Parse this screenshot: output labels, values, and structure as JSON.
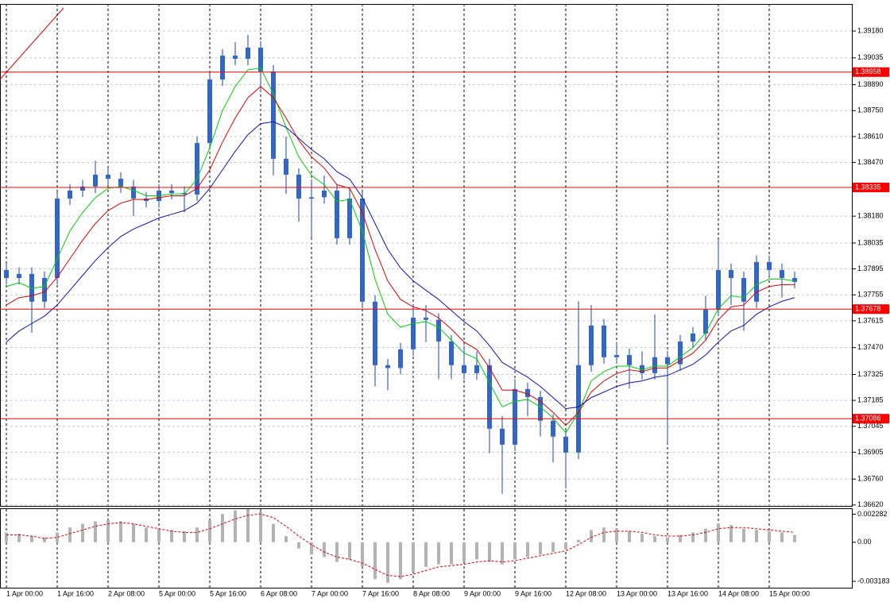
{
  "chart_data": [
    {
      "type": "candlestick",
      "categories": [
        "1 Apr 00:00",
        null,
        null,
        null,
        "1 Apr 16:00",
        null,
        null,
        null,
        "2 Apr 08:00",
        null,
        null,
        null,
        "5 Apr 00:00",
        null,
        null,
        null,
        "5 Apr 16:00",
        null,
        null,
        null,
        "6 Apr 08:00",
        null,
        null,
        null,
        "7 Apr 00:00",
        null,
        null,
        null,
        "7 Apr 16:00",
        null,
        null,
        null,
        "8 Apr 08:00",
        null,
        null,
        null,
        "9 Apr 00:00",
        null,
        null,
        null,
        "9 Apr 16:00",
        null,
        null,
        null,
        "12 Apr 08:00",
        null,
        null,
        null,
        "13 Apr 00:00",
        null,
        null,
        null,
        "13 Apr 16:00",
        null,
        null,
        null,
        "14 Apr 08:00",
        null,
        null,
        null,
        "15 Apr 00:00",
        null,
        null
      ],
      "open": [
        1.37889,
        1.37846,
        1.37868,
        1.37718,
        1.37846,
        1.38275,
        1.38318,
        1.3834,
        1.38404,
        1.38382,
        1.3834,
        1.38275,
        1.38262,
        1.38318,
        1.38305,
        1.38297,
        1.38575,
        1.38918,
        1.39047,
        1.3903,
        1.3909,
        1.38961,
        1.3849,
        1.38404,
        1.38275,
        1.38282,
        1.38318,
        1.38061,
        1.38275,
        1.37718,
        1.37375,
        1.3736,
        1.37461,
        1.37632,
        1.3762,
        1.37503,
        1.37375,
        1.37332,
        1.37375,
        1.37032,
        1.36946,
        1.37246,
        1.37203,
        1.37075,
        1.36989,
        1.36903,
        1.37375,
        1.37589,
        1.37418,
        1.3743,
        1.37375,
        1.37332,
        1.37418,
        1.3738,
        1.37503,
        1.37546,
        1.37675,
        1.37889,
        1.37846,
        1.37718,
        1.37932,
        1.37889,
        1.37846
      ],
      "high": [
        1.37924,
        1.37903,
        1.37903,
        1.37881,
        1.3831,
        1.38353,
        1.38375,
        1.3848,
        1.38439,
        1.38417,
        1.38375,
        1.3831,
        1.38353,
        1.38353,
        1.3834,
        1.3861,
        1.38953,
        1.39082,
        1.3912,
        1.3916,
        1.39125,
        1.38996,
        1.3861,
        1.38439,
        1.3838,
        1.384,
        1.38353,
        1.3833,
        1.3831,
        1.37753,
        1.3741,
        1.37496,
        1.377,
        1.377,
        1.37655,
        1.37538,
        1.3748,
        1.3745,
        1.3741,
        1.371,
        1.373,
        1.37281,
        1.37238,
        1.3711,
        1.37024,
        1.3772,
        1.377,
        1.37624,
        1.375,
        1.37465,
        1.3745,
        1.3765,
        1.37453,
        1.37538,
        1.37581,
        1.3775,
        1.3805,
        1.37924,
        1.37881,
        1.37967,
        1.37967,
        1.37924,
        1.37881
      ],
      "low": [
        1.37811,
        1.37811,
        1.3755,
        1.37683,
        1.37811,
        1.3824,
        1.38283,
        1.38305,
        1.38347,
        1.38305,
        1.3818,
        1.38227,
        1.38227,
        1.3827,
        1.382,
        1.38262,
        1.3854,
        1.38883,
        1.38995,
        1.38995,
        1.3885,
        1.384,
        1.383,
        1.3815,
        1.3806,
        1.38247,
        1.38026,
        1.38026,
        1.37683,
        1.3726,
        1.3724,
        1.37325,
        1.37426,
        1.375,
        1.373,
        1.373,
        1.37297,
        1.37297,
        1.369,
        1.3668,
        1.36911,
        1.371,
        1.3699,
        1.3685,
        1.3671,
        1.36868,
        1.3734,
        1.37383,
        1.37383,
        1.3725,
        1.37297,
        1.37297,
        1.3695,
        1.37345,
        1.37468,
        1.37511,
        1.3764,
        1.377,
        1.3756,
        1.37683,
        1.37854,
        1.3774,
        1.3779
      ],
      "close": [
        1.37846,
        1.37868,
        1.37718,
        1.37846,
        1.38275,
        1.38318,
        1.3834,
        1.38404,
        1.38382,
        1.3834,
        1.38275,
        1.38262,
        1.38318,
        1.38305,
        1.38297,
        1.38575,
        1.38918,
        1.39047,
        1.3903,
        1.3909,
        1.38961,
        1.3849,
        1.38404,
        1.38275,
        1.38282,
        1.38318,
        1.38061,
        1.38275,
        1.37718,
        1.37375,
        1.3736,
        1.37461,
        1.37632,
        1.3762,
        1.37503,
        1.37375,
        1.37332,
        1.37375,
        1.37032,
        1.36946,
        1.37246,
        1.37203,
        1.37075,
        1.36989,
        1.36903,
        1.37375,
        1.37589,
        1.37418,
        1.3743,
        1.37375,
        1.37332,
        1.37418,
        1.3738,
        1.37503,
        1.37546,
        1.37675,
        1.37889,
        1.37846,
        1.37718,
        1.37932,
        1.37889,
        1.37846,
        1.37825
      ],
      "candle_color": "#3465c8",
      "series": [
        {
          "color": "#00d000",
          "values": [
            1.378,
            1.3782,
            1.3779,
            1.378,
            1.3795,
            1.381,
            1.382,
            1.3828,
            1.3833,
            1.3834,
            1.3832,
            1.3829,
            1.3829,
            1.383,
            1.383,
            1.3838,
            1.3855,
            1.3875,
            1.3888,
            1.3897,
            1.3898,
            1.3884,
            1.3866,
            1.385,
            1.384,
            1.3835,
            1.3826,
            1.3827,
            1.381,
            1.3784,
            1.3765,
            1.3758,
            1.376,
            1.3761,
            1.3758,
            1.3751,
            1.3744,
            1.3741,
            1.3728,
            1.3715,
            1.3718,
            1.3719,
            1.3715,
            1.3709,
            1.3701,
            1.3712,
            1.3729,
            1.3734,
            1.3737,
            1.3737,
            1.3735,
            1.3737,
            1.3737,
            1.3742,
            1.3747,
            1.3755,
            1.3768,
            1.3775,
            1.3774,
            1.3781,
            1.3784,
            1.3784,
            1.3783
          ]
        },
        {
          "color": "#e00000",
          "values": [
            1.377,
            1.3774,
            1.3775,
            1.3777,
            1.3785,
            1.3795,
            1.3805,
            1.3814,
            1.3821,
            1.3825,
            1.3827,
            1.3827,
            1.3828,
            1.3829,
            1.3829,
            1.3833,
            1.3843,
            1.3858,
            1.3871,
            1.3882,
            1.3888,
            1.3882,
            1.3871,
            1.3859,
            1.385,
            1.3844,
            1.3835,
            1.3833,
            1.382,
            1.38,
            1.3783,
            1.3773,
            1.3769,
            1.3767,
            1.3763,
            1.3757,
            1.375,
            1.3746,
            1.3736,
            1.3724,
            1.3724,
            1.3722,
            1.3718,
            1.3712,
            1.3705,
            1.3712,
            1.3723,
            1.3729,
            1.3733,
            1.3735,
            1.3734,
            1.3736,
            1.3736,
            1.374,
            1.3744,
            1.3751,
            1.3762,
            1.3769,
            1.377,
            1.3777,
            1.378,
            1.3781,
            1.3781
          ]
        },
        {
          "color": "#1010c0",
          "values": [
            1.375,
            1.3756,
            1.376,
            1.3764,
            1.377,
            1.3778,
            1.3786,
            1.3794,
            1.3801,
            1.3807,
            1.3811,
            1.3814,
            1.3817,
            1.3819,
            1.3821,
            1.3825,
            1.3833,
            1.3843,
            1.3853,
            1.3862,
            1.3868,
            1.3869,
            1.3866,
            1.386,
            1.3854,
            1.3849,
            1.3842,
            1.3838,
            1.3828,
            1.3814,
            1.38,
            1.379,
            1.3783,
            1.3778,
            1.3773,
            1.3767,
            1.3761,
            1.3756,
            1.3748,
            1.3739,
            1.3735,
            1.3731,
            1.3726,
            1.372,
            1.3714,
            1.3715,
            1.372,
            1.3723,
            1.3726,
            1.3728,
            1.3729,
            1.3731,
            1.3732,
            1.3735,
            1.3738,
            1.3743,
            1.375,
            1.3756,
            1.3759,
            1.3765,
            1.3769,
            1.3772,
            1.3774
          ]
        }
      ],
      "levels": [
        1.38958,
        1.38335,
        1.37678,
        1.37086
      ],
      "level_color": "#ff0000",
      "ylim": [
        1.36615,
        1.39326
      ],
      "yticks": [
        {
          "value": 1.3918,
          "label": "1.39180"
        },
        1.39035,
        {
          "value": 1.3889,
          "label": "1.38890"
        },
        {
          "value": 1.3875,
          "label": "1.38750"
        },
        {
          "value": 1.3861,
          "label": "1.38610"
        },
        {
          "value": 1.3847,
          "label": "1.38470"
        },
        {
          "value": 1.3818,
          "label": "1.38180"
        },
        1.38035,
        1.37895,
        1.37755,
        1.37615,
        {
          "value": 1.3747,
          "label": "1.37470"
        },
        1.37325,
        1.37185,
        1.37045,
        1.36905,
        {
          "value": 1.3676,
          "label": "1.36760"
        },
        {
          "value": 1.3662,
          "label": "1.36620"
        }
      ],
      "grid": true
    },
    {
      "type": "bar",
      "color": "#b4b4b4",
      "values": [
        0.0008,
        0.0007,
        0.0005,
        0.0004,
        0.0008,
        0.0012,
        0.0015,
        0.0017,
        0.0018,
        0.0017,
        0.0015,
        0.0012,
        0.0011,
        0.001,
        0.0009,
        0.0012,
        0.0018,
        0.0023,
        0.0026,
        0.0027,
        0.0025,
        0.0015,
        0.0005,
        -0.0005,
        -0.001,
        -0.0012,
        -0.0016,
        -0.0014,
        -0.002,
        -0.003,
        -0.0033,
        -0.003,
        -0.0024,
        -0.002,
        -0.0018,
        -0.0018,
        -0.0016,
        -0.0014,
        -0.0016,
        -0.0018,
        -0.0014,
        -0.0012,
        -0.001,
        -0.0008,
        -0.0006,
        0.0002,
        0.001,
        0.0012,
        0.0011,
        0.0009,
        0.0007,
        0.0005,
        0.0004,
        0.0006,
        0.0008,
        0.0011,
        0.0015,
        0.0014,
        0.0011,
        0.001,
        0.0009,
        0.0008,
        0.0006
      ],
      "series": [
        {
          "color": "#e00000",
          "values": [
            0.0006,
            0.0006,
            0.0005,
            0.0003,
            0.0004,
            0.0007,
            0.001,
            0.0013,
            0.0015,
            0.0016,
            0.0015,
            0.0013,
            0.0011,
            0.0009,
            0.0008,
            0.0008,
            0.0011,
            0.0015,
            0.0019,
            0.0022,
            0.0023,
            0.002,
            0.0013,
            0.0005,
            -0.0002,
            -0.0008,
            -0.0012,
            -0.0014,
            -0.0017,
            -0.0022,
            -0.0027,
            -0.0028,
            -0.0026,
            -0.0023,
            -0.002,
            -0.0019,
            -0.0018,
            -0.0016,
            -0.0015,
            -0.0016,
            -0.0015,
            -0.0013,
            -0.0011,
            -0.0009,
            -0.0007,
            -0.0002,
            0.0004,
            0.0008,
            0.0009,
            0.0009,
            0.0008,
            0.0006,
            0.0005,
            0.0005,
            0.0006,
            0.0008,
            0.0011,
            0.0012,
            0.0012,
            0.0011,
            0.001,
            0.0009,
            0.0008
          ]
        }
      ],
      "ylim": [
        -0.0037,
        0.0027
      ],
      "yticks": [
        0.002282,
        {
          "value": 0,
          "label": "0.00"
        },
        -0.003183
      ]
    }
  ]
}
